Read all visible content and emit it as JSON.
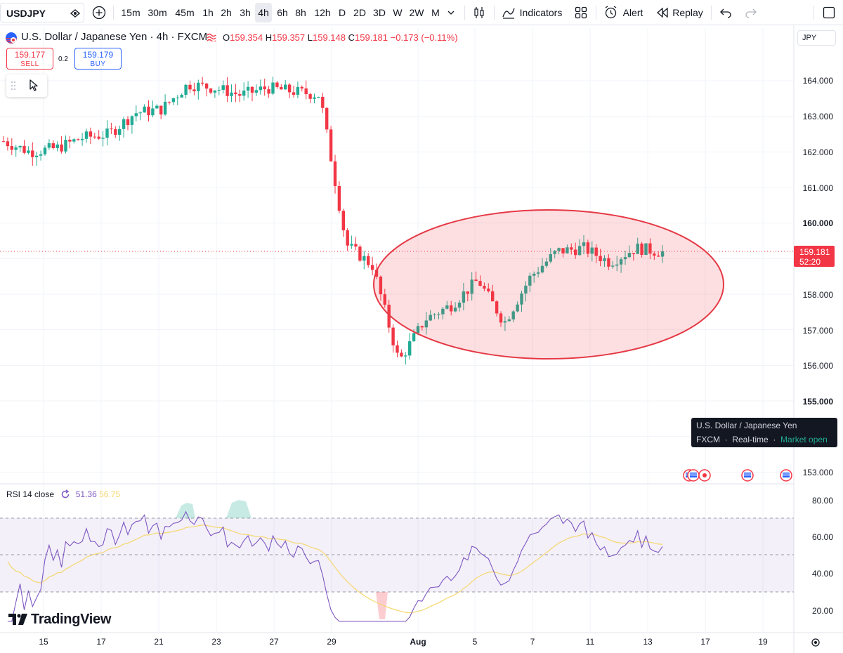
{
  "toolbar": {
    "symbol": "USDJPY",
    "intervals": [
      "15m",
      "30m",
      "45m",
      "1h",
      "2h",
      "3h",
      "4h",
      "6h",
      "8h",
      "12h",
      "D",
      "2D",
      "3D",
      "W",
      "2W",
      "M"
    ],
    "selected_interval": "4h",
    "indicators_label": "Indicators",
    "alert_label": "Alert",
    "replay_label": "Replay",
    "icons": [
      "plus-icon",
      "chevron-down-icon",
      "candles-icon",
      "indicators-icon",
      "templates-icon",
      "alert-icon",
      "replay-icon",
      "undo-icon",
      "redo-icon",
      "fullscreen-icon"
    ]
  },
  "legend": {
    "title": "U.S. Dollar / Japanese Yen · 4h · FXCM",
    "o_key": "O",
    "o_val": "159.354",
    "h_key": "H",
    "h_val": "159.357",
    "l_key": "L",
    "l_val": "159.148",
    "c_key": "C",
    "c_val": "159.181",
    "change": "−0.173 (−0.11%)"
  },
  "trade": {
    "sell_price": "159.177",
    "sell_label": "SELL",
    "buy_price": "159.179",
    "buy_label": "BUY",
    "spread": "0.2"
  },
  "price_axis": {
    "currency": "JPY",
    "ticks": [
      "164.000",
      "163.000",
      "162.000",
      "161.000",
      "160.000",
      "158.000",
      "157.000",
      "156.000",
      "155.000",
      "153.000"
    ],
    "current_price": "159.181",
    "countdown": "52:20"
  },
  "tooltip": {
    "line1": "U.S. Dollar / Japanese Yen",
    "exchange": "FXCM",
    "feed": "Real-time",
    "status": "Market open"
  },
  "rsi": {
    "label": "RSI 14 close",
    "value": "51.36",
    "ma_value": "56.75",
    "ticks": [
      "80.00",
      "60.00",
      "40.00",
      "20.00"
    ]
  },
  "time_axis": [
    "15",
    "17",
    "21",
    "23",
    "27",
    "29",
    "Aug",
    "5",
    "7",
    "11",
    "13",
    "17",
    "19"
  ],
  "brand": "TradingView",
  "colors": {
    "up": "#22ab94",
    "down": "#f23645",
    "rsi": "#7e57c2",
    "rsi_ma": "#f5d76e",
    "highlight": "#f23645"
  },
  "chart_data": {
    "type": "candlestick",
    "title": "U.S. Dollar / Japanese Yen · 4h · FXCM",
    "ylim": [
      152.5,
      165.5
    ],
    "approx_close_path": [
      {
        "x": "Jul 12",
        "y": 162.3
      },
      {
        "x": "Jul 15",
        "y": 162.0
      },
      {
        "x": "Jul 17",
        "y": 162.1
      },
      {
        "x": "Jul 19",
        "y": 162.4
      },
      {
        "x": "Jul 21",
        "y": 162.5
      },
      {
        "x": "Jul 22",
        "y": 163.1
      },
      {
        "x": "Jul 23",
        "y": 163.2
      },
      {
        "x": "Jul 24",
        "y": 163.9
      },
      {
        "x": "Jul 25",
        "y": 163.8
      },
      {
        "x": "Jul 27",
        "y": 163.6
      },
      {
        "x": "Jul 28",
        "y": 163.8
      },
      {
        "x": "Jul 29",
        "y": 163.7
      },
      {
        "x": "Jul 30",
        "y": 163.6
      },
      {
        "x": "Jul 31",
        "y": 159.4
      },
      {
        "x": "Aug 1",
        "y": 158.8
      },
      {
        "x": "Aug 2",
        "y": 156.1
      },
      {
        "x": "Aug 3",
        "y": 157.3
      },
      {
        "x": "Aug 5",
        "y": 157.7
      },
      {
        "x": "Aug 6",
        "y": 158.4
      },
      {
        "x": "Aug 7",
        "y": 157.2
      },
      {
        "x": "Aug 8",
        "y": 158.5
      },
      {
        "x": "Aug 9",
        "y": 159.2
      },
      {
        "x": "Aug 11",
        "y": 159.3
      },
      {
        "x": "Aug 12",
        "y": 158.9
      },
      {
        "x": "Aug 13",
        "y": 159.3
      },
      {
        "x": "Aug 14",
        "y": 159.18
      }
    ],
    "rsi_ylim": [
      10,
      88
    ],
    "rsi_bands": [
      70,
      50,
      30
    ]
  }
}
